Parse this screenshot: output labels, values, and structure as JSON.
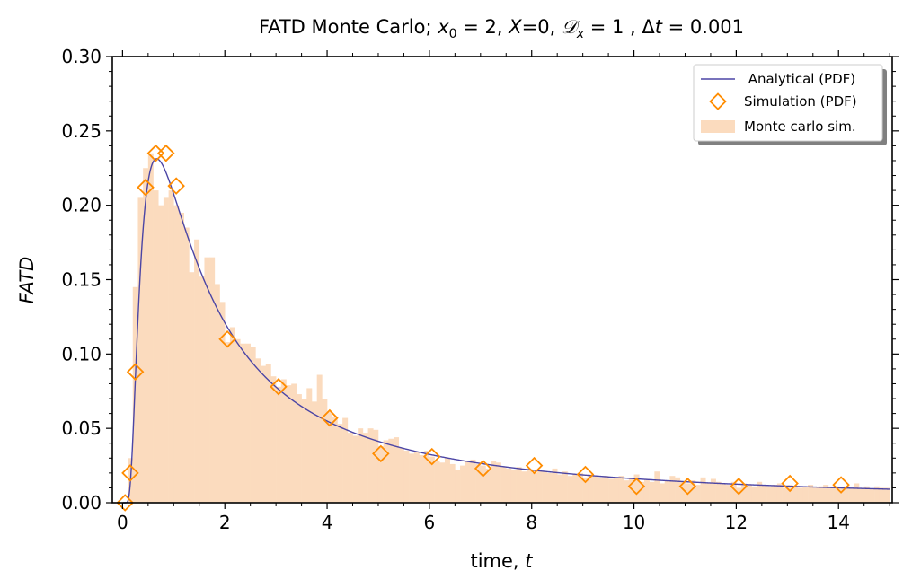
{
  "chart_data": {
    "type": "line+scatter+histogram",
    "title": {
      "prefix": "FATD Monte Carlo; ",
      "x0_sym": "x",
      "x0_sub": "0",
      "x0_val": " = 2, ",
      "X_sym": "X",
      "X_val": "=0, ",
      "D_sym": "𝒟",
      "D_sub": "x",
      "D_val": " = 1 , ",
      "dt_sym": "Δ",
      "dt_t": "t",
      "dt_val": " = 0.001"
    },
    "xlabel": {
      "text": "time, ",
      "var": "t"
    },
    "ylabel": "FATD",
    "xlim": [
      -0.2,
      15.05
    ],
    "ylim": [
      0,
      0.3
    ],
    "x_ticks": [
      0,
      2,
      4,
      6,
      8,
      10,
      12,
      14
    ],
    "y_ticks": [
      0.0,
      0.05,
      0.1,
      0.15,
      0.2,
      0.25,
      0.3
    ],
    "x_tick_labels": [
      "0",
      "2",
      "4",
      "6",
      "8",
      "10",
      "12",
      "14"
    ],
    "y_tick_labels": [
      "0.00",
      "0.05",
      "0.10",
      "0.15",
      "0.20",
      "0.25",
      "0.30"
    ],
    "grid": false,
    "legend_position": "top-right",
    "legend": [
      {
        "label": " Analytical (PDF)",
        "kind": "line"
      },
      {
        "label": "Simulation (PDF)",
        "kind": "marker"
      },
      {
        "label": "Monte carlo sim.",
        "kind": "patch"
      }
    ],
    "colors": {
      "analytical": "#4b45a5",
      "simulation": "#ff8c00",
      "histogram": "#fbdbbe"
    },
    "analytical": {
      "x0": 2,
      "D": 1,
      "t_max": 15
    },
    "simulation": {
      "x": [
        0.05,
        0.15,
        0.25,
        0.45,
        0.65,
        0.85,
        1.05,
        2.05,
        3.05,
        4.05,
        5.05,
        6.05,
        7.05,
        8.05,
        9.05,
        10.05,
        11.05,
        12.05,
        13.05,
        14.05
      ],
      "y": [
        0.0,
        0.02,
        0.088,
        0.212,
        0.235,
        0.235,
        0.213,
        0.11,
        0.078,
        0.057,
        0.033,
        0.031,
        0.023,
        0.025,
        0.019,
        0.011,
        0.011,
        0.011,
        0.013,
        0.012
      ]
    },
    "histogram": {
      "bin_width": 0.1,
      "x_start": 0.0,
      "values": [
        0.0,
        0.03,
        0.145,
        0.205,
        0.225,
        0.235,
        0.21,
        0.2,
        0.205,
        0.21,
        0.2,
        0.195,
        0.185,
        0.155,
        0.177,
        0.152,
        0.165,
        0.165,
        0.147,
        0.135,
        0.108,
        0.118,
        0.11,
        0.107,
        0.107,
        0.105,
        0.097,
        0.092,
        0.093,
        0.085,
        0.078,
        0.083,
        0.079,
        0.08,
        0.073,
        0.07,
        0.077,
        0.068,
        0.086,
        0.07,
        0.061,
        0.058,
        0.053,
        0.057,
        0.047,
        0.045,
        0.05,
        0.047,
        0.05,
        0.049,
        0.038,
        0.042,
        0.043,
        0.044,
        0.037,
        0.035,
        0.033,
        0.034,
        0.032,
        0.035,
        0.031,
        0.028,
        0.027,
        0.03,
        0.026,
        0.022,
        0.025,
        0.028,
        0.029,
        0.026,
        0.025,
        0.023,
        0.028,
        0.027,
        0.024,
        0.023,
        0.022,
        0.024,
        0.021,
        0.022,
        0.02,
        0.022,
        0.021,
        0.02,
        0.023,
        0.019,
        0.021,
        0.018,
        0.019,
        0.02,
        0.017,
        0.019,
        0.018,
        0.017,
        0.018,
        0.016,
        0.017,
        0.018,
        0.015,
        0.016,
        0.019,
        0.014,
        0.016,
        0.014,
        0.021,
        0.013,
        0.015,
        0.018,
        0.017,
        0.014,
        0.013,
        0.015,
        0.012,
        0.017,
        0.013,
        0.016,
        0.014,
        0.013,
        0.012,
        0.014,
        0.01,
        0.013,
        0.012,
        0.011,
        0.014,
        0.012,
        0.011,
        0.012,
        0.013,
        0.01,
        0.012,
        0.011,
        0.01,
        0.011,
        0.012,
        0.01,
        0.011,
        0.012,
        0.01,
        0.011,
        0.01,
        0.011,
        0.01,
        0.013,
        0.01,
        0.011,
        0.009,
        0.011,
        0.01,
        0.01
      ]
    }
  }
}
